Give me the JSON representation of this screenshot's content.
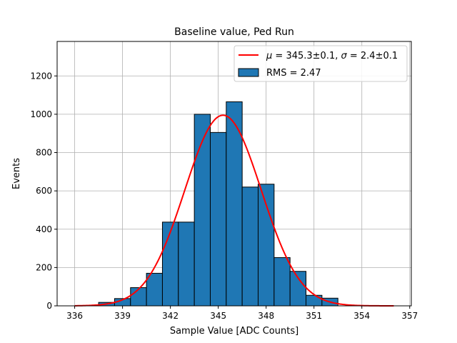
{
  "chart_data": {
    "type": "bar",
    "title": "Baseline value, Ped Run",
    "xlabel": "Sample Value [ADC Counts]",
    "ylabel": "Events",
    "xlim": [
      334.9,
      357.1
    ],
    "ylim": [
      0,
      1380
    ],
    "x_ticks": [
      336,
      339,
      342,
      345,
      348,
      351,
      354,
      357
    ],
    "y_ticks": [
      0,
      200,
      400,
      600,
      800,
      1000,
      1200
    ],
    "grid": true,
    "legend_position": "top-right",
    "bin_edges": [
      337.5,
      338.5,
      339.5,
      340.5,
      341.5,
      342.5,
      343.5,
      344.5,
      345.5,
      346.5,
      347.5,
      348.5,
      349.5,
      350.5,
      351.5,
      352.5
    ],
    "counts": [
      18,
      38,
      95,
      170,
      437,
      437,
      1000,
      905,
      1065,
      620,
      635,
      252,
      180,
      55,
      40
    ],
    "bar_color": "#1f77b4",
    "fit_color": "#ff0000",
    "fit": {
      "mu": 345.3,
      "sigma": 2.4,
      "amplitude": 995,
      "x_start": 336,
      "x_end": 356
    },
    "legend": [
      {
        "type": "line",
        "label_parts": [
          {
            "t": "μ",
            "i": true
          },
          {
            "t": " = 345.3±0.1, "
          },
          {
            "t": "σ",
            "i": true
          },
          {
            "t": " = 2.4±0.1"
          }
        ]
      },
      {
        "type": "patch",
        "label_parts": [
          {
            "t": "RMS = 2.47"
          }
        ]
      }
    ]
  }
}
